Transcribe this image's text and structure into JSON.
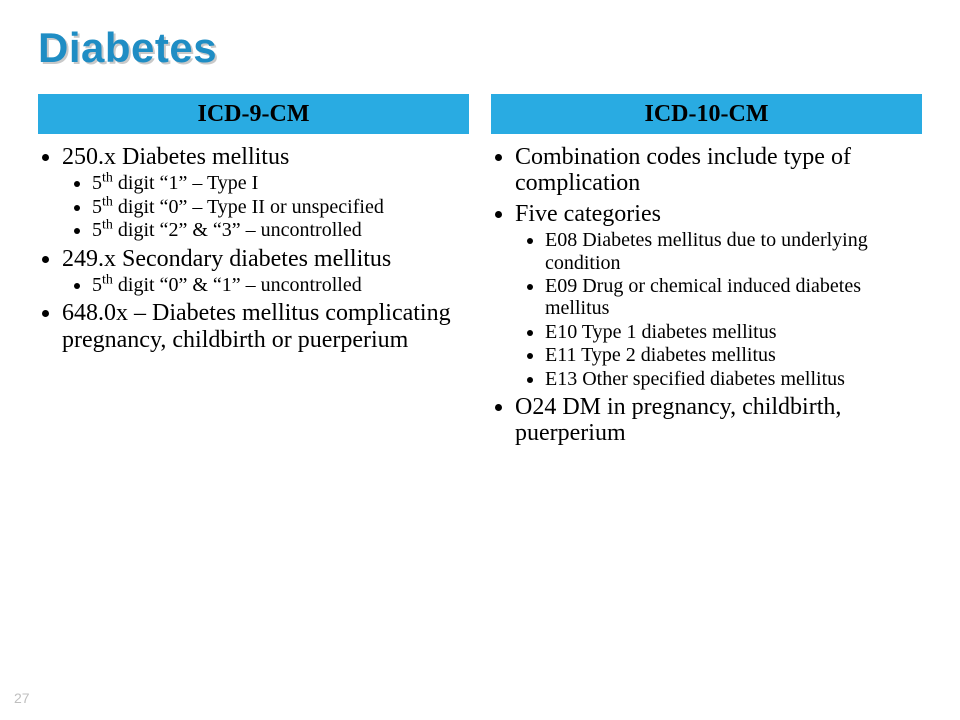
{
  "title": {
    "text": "Diabetes",
    "color": "#1f8dc4",
    "shadow_color": "#c9c9c9"
  },
  "page_number": "27",
  "header_bg": "#29abe2",
  "header_fg": "#000000",
  "left": {
    "header": "ICD-9-CM",
    "items": [
      {
        "text": "250.x Diabetes mellitus",
        "sub": [
          {
            "pre": "5",
            "sup": "th",
            "post": " digit “1” – Type I"
          },
          {
            "pre": "5",
            "sup": "th",
            "post": " digit “0” – Type II or unspecified"
          },
          {
            "pre": "5",
            "sup": "th",
            "post": " digit “2” & “3” – uncontrolled"
          }
        ]
      },
      {
        "text": "249.x Secondary diabetes mellitus",
        "sub": [
          {
            "pre": "5",
            "sup": "th",
            "post": " digit “0” & “1” – uncontrolled"
          }
        ]
      },
      {
        "text": "648.0x – Diabetes mellitus complicating pregnancy, childbirth or puerperium",
        "sub": []
      }
    ]
  },
  "right": {
    "header": "ICD-10-CM",
    "items": [
      {
        "text": "Combination codes include type of complication",
        "sub": []
      },
      {
        "text": "Five categories",
        "sub": [
          {
            "text": "E08 Diabetes mellitus due to underlying condition"
          },
          {
            "text": "E09 Drug or chemical induced diabetes mellitus"
          },
          {
            "text": "E10 Type 1 diabetes mellitus"
          },
          {
            "text": "E11 Type 2 diabetes mellitus"
          },
          {
            "text": "E13 Other specified diabetes mellitus"
          }
        ]
      },
      {
        "text": "O24 DM in pregnancy, childbirth, puerperium",
        "sub": []
      }
    ]
  }
}
